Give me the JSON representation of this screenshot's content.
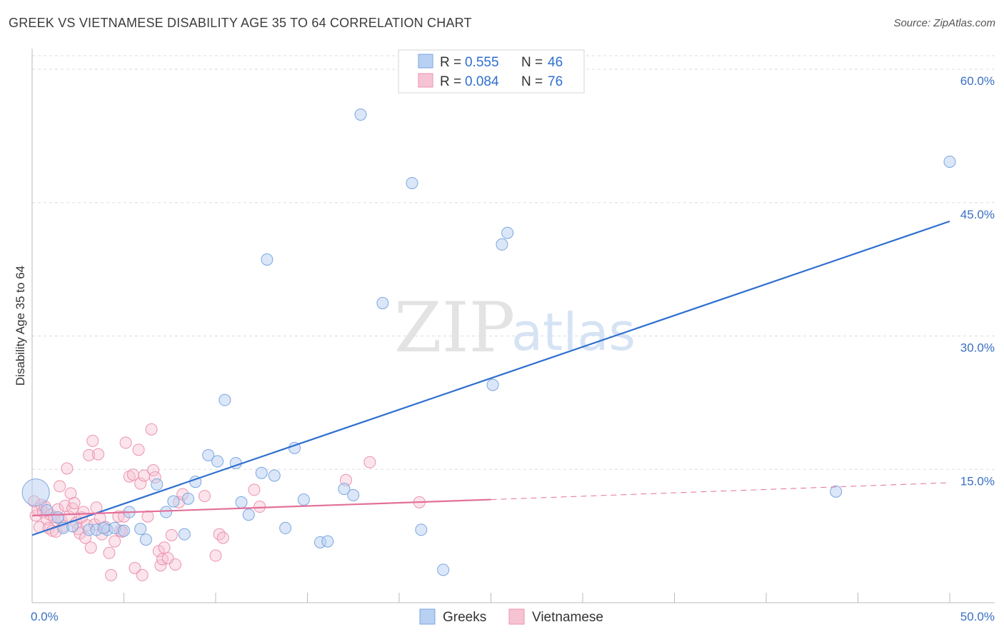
{
  "title": "GREEK VS VIETNAMESE DISABILITY AGE 35 TO 64 CORRELATION CHART",
  "source": "Source: ZipAtlas.com",
  "watermark": {
    "part1": "ZIP",
    "part2": "atlas"
  },
  "legend": {
    "rows": [
      {
        "r_label": "R =",
        "r_value": "0.555",
        "n_label": "N =",
        "n_value": "46"
      },
      {
        "r_label": "R =",
        "r_value": "0.084",
        "n_label": "N =",
        "n_value": "76"
      }
    ]
  },
  "bottom_legend": [
    "Greeks",
    "Vietnamese"
  ],
  "colors": {
    "greeks_fill": "#b8d0f2",
    "greeks_stroke": "#7aa6e0",
    "greeks_line": "#2f6fd0",
    "viet_fill": "#f6c3d3",
    "viet_stroke": "#ec93b0",
    "viet_line": "#e3709a",
    "grid": "#dddddd",
    "tick_label": "#3a6fc4"
  },
  "chart_data": {
    "type": "scatter",
    "title": "GREEK VS VIETNAMESE DISABILITY AGE 35 TO 64 CORRELATION CHART",
    "xlabel": "",
    "ylabel": "Disability Age 35 to 64",
    "xlim": [
      0,
      50
    ],
    "ylim": [
      0,
      60
    ],
    "x_tick_labels": [
      "0.0%",
      "50.0%"
    ],
    "y_tick_labels": [
      "15.0%",
      "30.0%",
      "45.0%",
      "60.0%"
    ],
    "y_tick_values": [
      15,
      30,
      45,
      60
    ],
    "grid": true,
    "legend_position": "top-center",
    "series": [
      {
        "name": "Greeks",
        "R": 0.555,
        "N": 46,
        "trend": {
          "x": [
            0,
            50
          ],
          "y": [
            7.6,
            42.9
          ],
          "style": "solid"
        },
        "points": [
          {
            "x": 0.2,
            "y": 12.4,
            "big": true
          },
          {
            "x": 0.8,
            "y": 10.4
          },
          {
            "x": 1.4,
            "y": 9.6
          },
          {
            "x": 1.7,
            "y": 8.4
          },
          {
            "x": 2.2,
            "y": 8.6
          },
          {
            "x": 3.1,
            "y": 8.2
          },
          {
            "x": 3.5,
            "y": 8.2
          },
          {
            "x": 4.1,
            "y": 8.2
          },
          {
            "x": 4.5,
            "y": 8.4
          },
          {
            "x": 5.0,
            "y": 8.1
          },
          {
            "x": 5.3,
            "y": 10.2
          },
          {
            "x": 5.9,
            "y": 8.3
          },
          {
            "x": 6.2,
            "y": 7.1
          },
          {
            "x": 6.8,
            "y": 13.3
          },
          {
            "x": 7.3,
            "y": 10.2
          },
          {
            "x": 7.7,
            "y": 11.4
          },
          {
            "x": 8.3,
            "y": 7.7
          },
          {
            "x": 8.5,
            "y": 11.7
          },
          {
            "x": 8.9,
            "y": 13.6
          },
          {
            "x": 9.6,
            "y": 16.6
          },
          {
            "x": 10.1,
            "y": 15.9
          },
          {
            "x": 10.5,
            "y": 22.8
          },
          {
            "x": 11.1,
            "y": 15.7
          },
          {
            "x": 11.4,
            "y": 11.3
          },
          {
            "x": 11.8,
            "y": 9.9
          },
          {
            "x": 12.5,
            "y": 14.6
          },
          {
            "x": 12.8,
            "y": 38.6
          },
          {
            "x": 13.2,
            "y": 14.3
          },
          {
            "x": 13.8,
            "y": 8.4
          },
          {
            "x": 14.3,
            "y": 17.4
          },
          {
            "x": 14.8,
            "y": 11.6
          },
          {
            "x": 15.7,
            "y": 6.8
          },
          {
            "x": 16.1,
            "y": 6.9
          },
          {
            "x": 17.0,
            "y": 12.8
          },
          {
            "x": 17.5,
            "y": 12.1
          },
          {
            "x": 17.9,
            "y": 54.9
          },
          {
            "x": 19.1,
            "y": 33.7
          },
          {
            "x": 20.7,
            "y": 47.2
          },
          {
            "x": 21.2,
            "y": 8.2
          },
          {
            "x": 22.4,
            "y": 3.7
          },
          {
            "x": 25.1,
            "y": 24.5
          },
          {
            "x": 25.6,
            "y": 40.3
          },
          {
            "x": 25.9,
            "y": 41.6
          },
          {
            "x": 43.8,
            "y": 12.5
          },
          {
            "x": 50.0,
            "y": 49.6
          },
          {
            "x": 3.9,
            "y": 8.4
          }
        ]
      },
      {
        "name": "Vietnamese",
        "R": 0.084,
        "N": 76,
        "trend": {
          "x": [
            0,
            25
          ],
          "y": [
            9.8,
            11.6
          ],
          "style": "solid",
          "extension": {
            "x": [
              25,
              50
            ],
            "y": [
              11.6,
              13.5
            ],
            "style": "dashed"
          }
        },
        "points": [
          {
            "x": 0.1,
            "y": 11.4
          },
          {
            "x": 0.2,
            "y": 9.8
          },
          {
            "x": 0.3,
            "y": 10.5
          },
          {
            "x": 0.4,
            "y": 8.5
          },
          {
            "x": 0.5,
            "y": 11.0
          },
          {
            "x": 0.6,
            "y": 10.2
          },
          {
            "x": 0.7,
            "y": 10.8
          },
          {
            "x": 0.8,
            "y": 9.4
          },
          {
            "x": 0.9,
            "y": 8.4
          },
          {
            "x": 1.0,
            "y": 9.9
          },
          {
            "x": 1.1,
            "y": 8.1
          },
          {
            "x": 1.2,
            "y": 9.6
          },
          {
            "x": 1.3,
            "y": 8.0
          },
          {
            "x": 1.4,
            "y": 10.5
          },
          {
            "x": 1.5,
            "y": 13.1
          },
          {
            "x": 1.6,
            "y": 9.2
          },
          {
            "x": 1.7,
            "y": 8.6
          },
          {
            "x": 1.8,
            "y": 10.9
          },
          {
            "x": 1.9,
            "y": 15.1
          },
          {
            "x": 2.0,
            "y": 9.7
          },
          {
            "x": 2.1,
            "y": 12.3
          },
          {
            "x": 2.2,
            "y": 10.6
          },
          {
            "x": 2.3,
            "y": 11.2
          },
          {
            "x": 2.4,
            "y": 9.0
          },
          {
            "x": 2.5,
            "y": 8.3
          },
          {
            "x": 2.6,
            "y": 7.8
          },
          {
            "x": 2.7,
            "y": 9.6
          },
          {
            "x": 2.8,
            "y": 10.2
          },
          {
            "x": 2.9,
            "y": 7.3
          },
          {
            "x": 3.0,
            "y": 8.7
          },
          {
            "x": 3.1,
            "y": 16.6
          },
          {
            "x": 3.2,
            "y": 6.2
          },
          {
            "x": 3.3,
            "y": 18.2
          },
          {
            "x": 3.4,
            "y": 8.8
          },
          {
            "x": 3.5,
            "y": 10.7
          },
          {
            "x": 3.6,
            "y": 16.7
          },
          {
            "x": 3.7,
            "y": 9.5
          },
          {
            "x": 3.8,
            "y": 7.7
          },
          {
            "x": 4.0,
            "y": 8.5
          },
          {
            "x": 4.2,
            "y": 5.6
          },
          {
            "x": 4.3,
            "y": 3.1
          },
          {
            "x": 4.5,
            "y": 6.9
          },
          {
            "x": 4.7,
            "y": 9.7
          },
          {
            "x": 4.8,
            "y": 8.1
          },
          {
            "x": 4.9,
            "y": 8.0
          },
          {
            "x": 5.0,
            "y": 9.7
          },
          {
            "x": 5.1,
            "y": 18.0
          },
          {
            "x": 5.3,
            "y": 14.2
          },
          {
            "x": 5.5,
            "y": 14.4
          },
          {
            "x": 5.6,
            "y": 3.9
          },
          {
            "x": 5.8,
            "y": 17.2
          },
          {
            "x": 5.9,
            "y": 13.4
          },
          {
            "x": 6.0,
            "y": 3.1
          },
          {
            "x": 6.1,
            "y": 14.3
          },
          {
            "x": 6.3,
            "y": 9.7
          },
          {
            "x": 6.5,
            "y": 19.5
          },
          {
            "x": 6.6,
            "y": 14.9
          },
          {
            "x": 6.7,
            "y": 14.1
          },
          {
            "x": 6.9,
            "y": 5.8
          },
          {
            "x": 7.0,
            "y": 4.2
          },
          {
            "x": 7.1,
            "y": 4.9
          },
          {
            "x": 7.2,
            "y": 6.2
          },
          {
            "x": 7.4,
            "y": 5.0
          },
          {
            "x": 7.6,
            "y": 7.6
          },
          {
            "x": 7.8,
            "y": 4.3
          },
          {
            "x": 8.0,
            "y": 11.3
          },
          {
            "x": 8.2,
            "y": 12.2
          },
          {
            "x": 9.4,
            "y": 12.0
          },
          {
            "x": 10.0,
            "y": 5.3
          },
          {
            "x": 10.2,
            "y": 7.7
          },
          {
            "x": 10.4,
            "y": 7.3
          },
          {
            "x": 12.1,
            "y": 12.7
          },
          {
            "x": 12.4,
            "y": 10.8
          },
          {
            "x": 17.1,
            "y": 13.8
          },
          {
            "x": 18.4,
            "y": 15.8
          },
          {
            "x": 21.1,
            "y": 11.3
          }
        ]
      }
    ]
  }
}
